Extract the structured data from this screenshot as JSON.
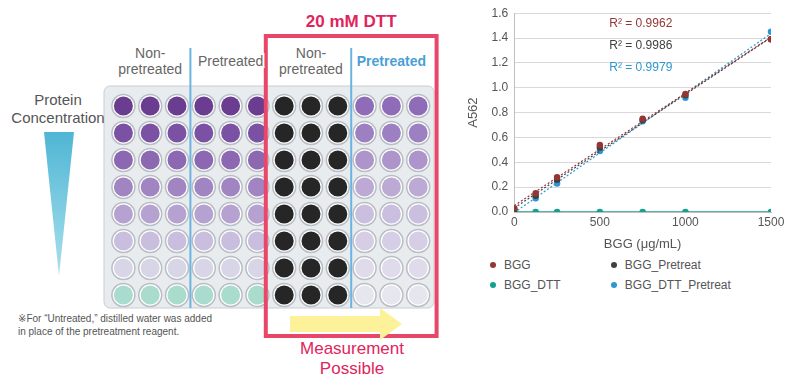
{
  "figure": {
    "title": "20 mM DTT",
    "column_labels": [
      {
        "lines": [
          "Non-",
          "pretreated"
        ],
        "color": "#666666"
      },
      {
        "lines": [
          "Pretreated"
        ],
        "color": "#666666"
      },
      {
        "lines": [
          "Non-",
          "pretreated"
        ],
        "color": "#666666"
      },
      {
        "lines": [
          "Pretreated"
        ],
        "color": "#4a9fd6"
      }
    ],
    "gradient_label": [
      "Protein",
      "Concentration"
    ],
    "note": [
      "※For “Untreated,” distilled water was added",
      "in place of the pretreatment reagent."
    ],
    "arrow_label": [
      "Measurement",
      "Possible"
    ]
  },
  "chart_data": {
    "type": "scatter",
    "x_label": "BGG (μg/mL)",
    "y_label": "A562",
    "xlim": [
      0,
      1500
    ],
    "xticks": [
      0,
      500,
      1000,
      1500
    ],
    "ylim": [
      0,
      1.6
    ],
    "yticks": [
      {
        "value": 0,
        "label": "0.0"
      },
      {
        "value": 0.2,
        "label": "0.2"
      },
      {
        "value": 0.4,
        "label": "0.4"
      },
      {
        "value": 0.6,
        "label": "0.6"
      },
      {
        "value": 0.8,
        "label": "0.8"
      },
      {
        "value": 1.0,
        "label": "1.0"
      },
      {
        "value": 1.2,
        "label": "1.2"
      },
      {
        "value": 1.4,
        "label": "1.4"
      },
      {
        "value": 1.6,
        "label": "1.6"
      }
    ],
    "grid": "y",
    "legend": "bottom",
    "x": [
      0,
      125,
      250,
      500,
      750,
      1000,
      1500
    ],
    "series": [
      {
        "name": "BGG",
        "color": "#943634",
        "marker": "circle",
        "line_style": "dotted",
        "values": [
          0.03,
          0.15,
          0.28,
          0.54,
          0.75,
          0.95,
          1.39
        ]
      },
      {
        "name": "BGG_Pretreat",
        "color": "#404040",
        "marker": "circle",
        "line_style": "dotted",
        "values": [
          0.02,
          0.13,
          0.26,
          0.52,
          0.74,
          0.94,
          1.39
        ]
      },
      {
        "name": "BGG_DTT",
        "color": "#17a08a",
        "marker": "circle",
        "line_style": "solid",
        "values": [
          0.0,
          0.0,
          0.0,
          0.0,
          0.0,
          0.0,
          0.0
        ]
      },
      {
        "name": "BGG_DTT_Pretreat",
        "color": "#2e96d1",
        "marker": "circle",
        "line_style": "dotted",
        "values": [
          0.0,
          0.11,
          0.23,
          0.49,
          0.73,
          0.92,
          1.45
        ]
      }
    ],
    "annotations": [
      {
        "text": "R² = 0.9962",
        "color": "#943634"
      },
      {
        "text": "R² = 0.9986",
        "color": "#404040"
      },
      {
        "text": "R² = 0.9979",
        "color": "#2e96d1"
      }
    ]
  }
}
